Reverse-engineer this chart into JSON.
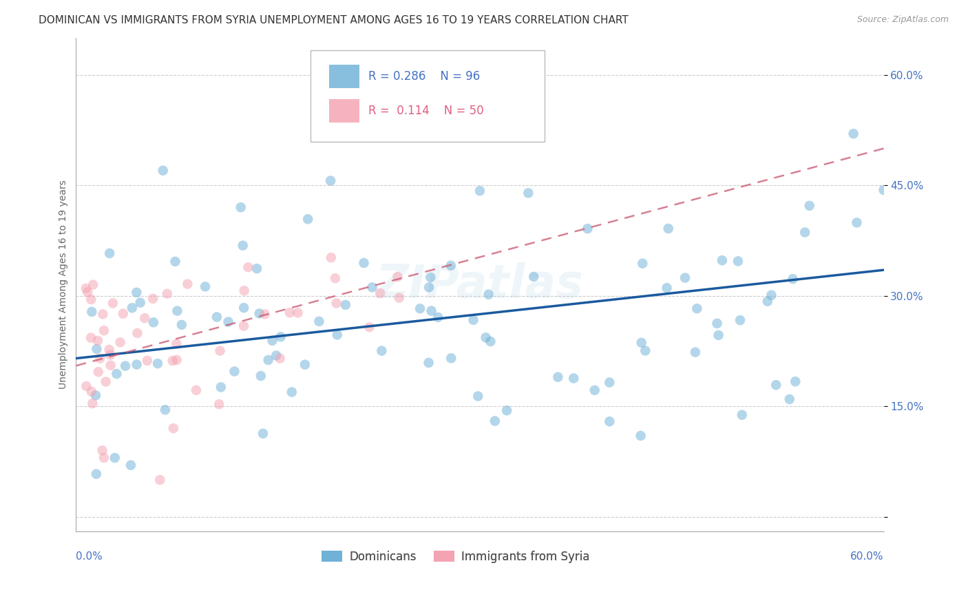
{
  "title": "DOMINICAN VS IMMIGRANTS FROM SYRIA UNEMPLOYMENT AMONG AGES 16 TO 19 YEARS CORRELATION CHART",
  "source": "Source: ZipAtlas.com",
  "ylabel": "Unemployment Among Ages 16 to 19 years",
  "ytick_values": [
    0.0,
    0.15,
    0.3,
    0.45,
    0.6
  ],
  "ytick_labels": [
    "",
    "15.0%",
    "30.0%",
    "45.0%",
    "60.0%"
  ],
  "xlim": [
    0.0,
    0.6
  ],
  "ylim": [
    -0.02,
    0.65
  ],
  "blue_color": "#6baed6",
  "blue_line_color": "#1a5a9e",
  "pink_color": "#f4a0b0",
  "pink_line_color": "#c9566e",
  "legend_blue_r": "0.286",
  "legend_blue_n": "96",
  "legend_pink_r": "0.114",
  "legend_pink_n": "50",
  "watermark": "ZIPatlas",
  "blue_trend_x0": 0.0,
  "blue_trend_x1": 0.6,
  "blue_trend_y0": 0.215,
  "blue_trend_y1": 0.335,
  "pink_trend_x0": 0.0,
  "pink_trend_x1": 0.6,
  "pink_trend_y0": 0.205,
  "pink_trend_y1": 0.5,
  "title_fontsize": 11,
  "source_fontsize": 9,
  "label_fontsize": 10,
  "tick_fontsize": 11,
  "legend_fontsize": 12,
  "watermark_fontsize": 48,
  "watermark_alpha": 0.1,
  "scatter_size": 110,
  "scatter_alpha": 0.5,
  "grid_color": "#cccccc",
  "background_color": "#ffffff"
}
